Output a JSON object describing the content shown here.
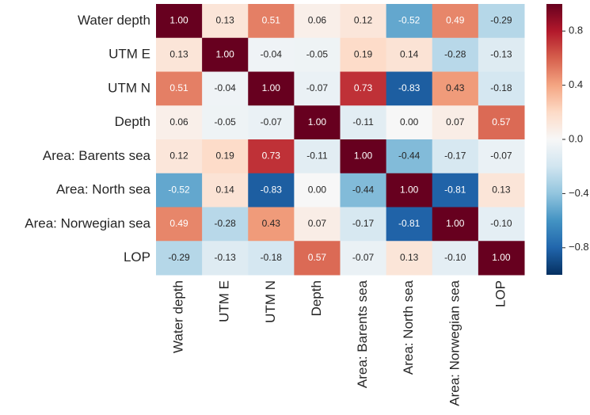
{
  "chart_data": {
    "type": "heatmap",
    "colormap": "RdBu_r",
    "y_categories": [
      "Water depth",
      "UTM E",
      "UTM N",
      "Depth",
      "Area: Barents sea",
      "Area: North sea",
      "Area: Norwegian sea",
      "LOP"
    ],
    "x_categories": [
      "Water depth",
      "UTM E",
      "UTM N",
      "Depth",
      "Area: Barents sea",
      "Area: North sea",
      "Area: Norwegian sea",
      "LOP"
    ],
    "values": [
      [
        1,
        0.13,
        0.51,
        0.06,
        0.12,
        -0.52,
        0.49,
        -0.29
      ],
      [
        0.13,
        1,
        -0.04,
        -0.05,
        0.19,
        0.14,
        -0.28,
        -0.13
      ],
      [
        0.51,
        -0.04,
        1,
        -0.07,
        0.73,
        -0.83,
        0.43,
        -0.18
      ],
      [
        0.06,
        -0.05,
        -0.07,
        1,
        -0.11,
        0,
        0.07,
        0.57
      ],
      [
        0.12,
        0.19,
        0.73,
        -0.11,
        1,
        -0.44,
        -0.17,
        -0.07
      ],
      [
        -0.52,
        0.14,
        -0.83,
        0,
        -0.44,
        1,
        -0.81,
        0.13
      ],
      [
        0.49,
        -0.28,
        0.43,
        0.07,
        -0.17,
        -0.81,
        1,
        -0.1
      ],
      [
        -0.29,
        -0.13,
        -0.18,
        0.57,
        -0.07,
        0.13,
        -0.1,
        1
      ]
    ],
    "value_labels": [
      [
        "1.00",
        "0.13",
        "0.51",
        "0.06",
        "0.12",
        "-0.52",
        "0.49",
        "-0.29"
      ],
      [
        "0.13",
        "1.00",
        "-0.04",
        "-0.05",
        "0.19",
        "0.14",
        "-0.28",
        "-0.13"
      ],
      [
        "0.51",
        "-0.04",
        "1.00",
        "-0.07",
        "0.73",
        "-0.83",
        "0.43",
        "-0.18"
      ],
      [
        "0.06",
        "-0.05",
        "-0.07",
        "1.00",
        "-0.11",
        "0.00",
        "0.07",
        "0.57"
      ],
      [
        "0.12",
        "0.19",
        "0.73",
        "-0.11",
        "1.00",
        "-0.44",
        "-0.17",
        "-0.07"
      ],
      [
        "-0.52",
        "0.14",
        "-0.83",
        "0.00",
        "-0.44",
        "1.00",
        "-0.81",
        "0.13"
      ],
      [
        "0.49",
        "-0.28",
        "0.43",
        "0.07",
        "-0.17",
        "-0.81",
        "1.00",
        "-0.10"
      ],
      [
        "-0.29",
        "-0.13",
        "-0.18",
        "0.57",
        "-0.07",
        "0.13",
        "-0.10",
        "1.00"
      ]
    ],
    "clim": [
      -1,
      1
    ],
    "cticks": [
      0.8,
      0.4,
      {
        "value": 0,
        "label": "0.0"
      },
      {
        "value": -0.4,
        "label": "−0.4"
      },
      {
        "value": -0.8,
        "label": "−0.8"
      }
    ]
  }
}
